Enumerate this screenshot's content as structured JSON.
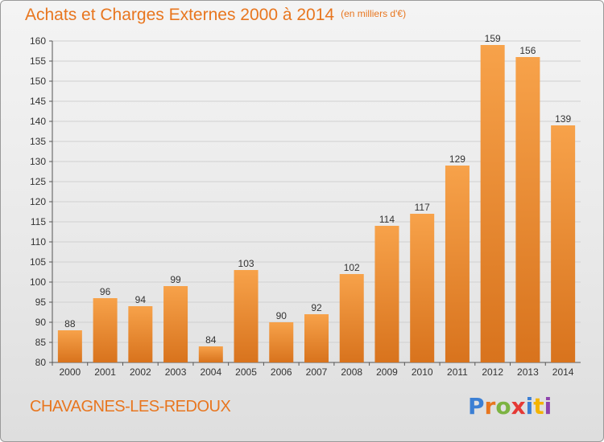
{
  "header": {
    "title": "Achats et Charges Externes 2000 à 2014",
    "unit": "(en milliers d'€)"
  },
  "footer": {
    "commune": "CHAVAGNES-LES-REDOUX",
    "logo_text": "Proxiti",
    "logo_colors": [
      "#3b7fd4",
      "#e8761f",
      "#7cb342",
      "#e53935",
      "#3b7fd4",
      "#f4b400",
      "#8e44ad"
    ]
  },
  "colors": {
    "bar_light": "#f7a24a",
    "bar_dark": "#d8731d",
    "title": "#e8761f",
    "grid": "#d0d0d0"
  },
  "chart_data": {
    "type": "bar",
    "categories": [
      "2000",
      "2001",
      "2002",
      "2003",
      "2004",
      "2005",
      "2006",
      "2007",
      "2008",
      "2009",
      "2010",
      "2011",
      "2012",
      "2013",
      "2014"
    ],
    "values": [
      88,
      96,
      94,
      99,
      84,
      103,
      90,
      92,
      102,
      114,
      117,
      129,
      159,
      156,
      139
    ],
    "yticks": [
      80,
      85,
      90,
      95,
      100,
      105,
      110,
      115,
      120,
      125,
      130,
      135,
      140,
      145,
      150,
      155,
      160
    ],
    "ylim": [
      80,
      160
    ],
    "grid": true,
    "data_labels": true
  }
}
